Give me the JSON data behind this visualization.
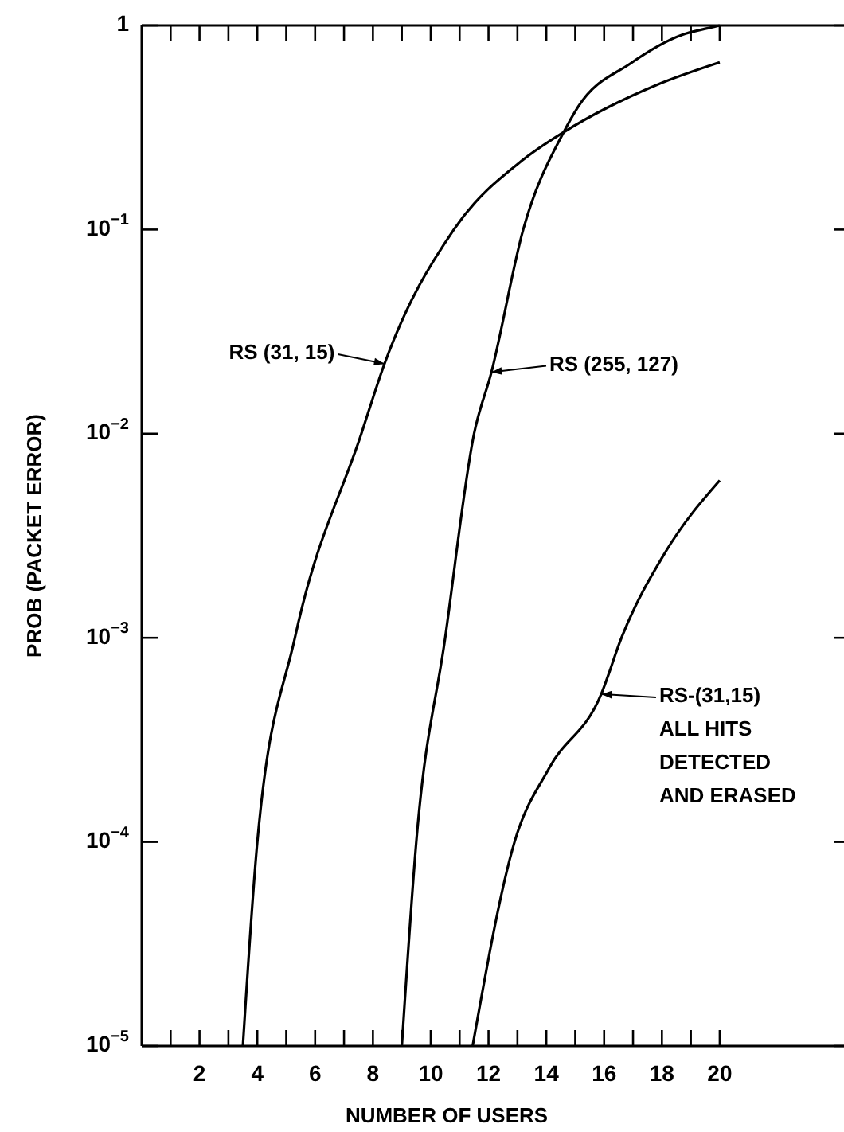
{
  "chart_data": {
    "type": "line",
    "xlabel": "NUMBER OF USERS",
    "ylabel": "PROB (PACKET ERROR)",
    "log": "y",
    "xlim": [
      0,
      24.3
    ],
    "ylim": [
      1e-05,
      1
    ],
    "xticks": [
      {
        "value": 1,
        "label": null
      },
      2,
      {
        "value": 3,
        "label": null
      },
      4,
      {
        "value": 5,
        "label": null
      },
      6,
      {
        "value": 7,
        "label": null
      },
      8,
      {
        "value": 9,
        "label": null
      },
      10,
      {
        "value": 11,
        "label": null
      },
      12,
      {
        "value": 13,
        "label": null
      },
      14,
      {
        "value": 15,
        "label": null
      },
      16,
      {
        "value": 17,
        "label": null
      },
      18,
      {
        "value": 19,
        "label": null
      },
      20
    ],
    "yticks": [
      {
        "value": 1e-05,
        "label": "10$^{−5}$"
      },
      {
        "value": 0.0001,
        "label": "10$^{−4}$"
      },
      {
        "value": 0.001,
        "label": "10$^{−3}$"
      },
      {
        "value": 0.01,
        "label": "10$^{−2}$"
      },
      {
        "value": 0.1,
        "label": "10$^{−1}$"
      },
      {
        "value": 1,
        "label": "1"
      }
    ],
    "grid": false,
    "marker": "none",
    "line_style": "solid",
    "series": [
      {
        "color": "#000000",
        "x": [
          3.5,
          4.0,
          5.3,
          7.6,
          8.4,
          10.8,
          13.2,
          14.6,
          17.8,
          20
        ],
        "values": [
          1e-05,
          0.0001,
          0.001,
          0.01,
          0.022,
          0.1,
          0.22,
          0.3,
          0.51,
          0.66
        ]
      },
      {
        "color": "#000000",
        "x": [
          9.0,
          9.5,
          10.5,
          11.5,
          12.1,
          13.2,
          14.6,
          15.1,
          16.9,
          18.7,
          19.6,
          20
        ],
        "values": [
          1e-05,
          0.0001,
          0.001,
          0.01,
          0.02,
          0.1,
          0.3,
          0.4,
          0.65,
          0.9,
          0.97,
          1
        ]
      },
      {
        "color": "#000000",
        "x": [
          11.45,
          12.9,
          14.1,
          15.9,
          16.6,
          18.1,
          20
        ],
        "values": [
          1e-05,
          0.0001,
          0.00023,
          0.00053,
          0.001,
          0.0026,
          0.0059
        ]
      }
    ],
    "annotations": [
      {
        "text": "RS (31, 15)",
        "x": 8.4,
        "y": 0.022
      },
      {
        "text": "RS (255, 127)",
        "x": 12.1,
        "y": 0.02
      },
      {
        "text": "RS-(31,15)\nALL HITS\nDETECTED\nAND ERASED",
        "x": 15.9,
        "y": 0.00053
      }
    ]
  }
}
